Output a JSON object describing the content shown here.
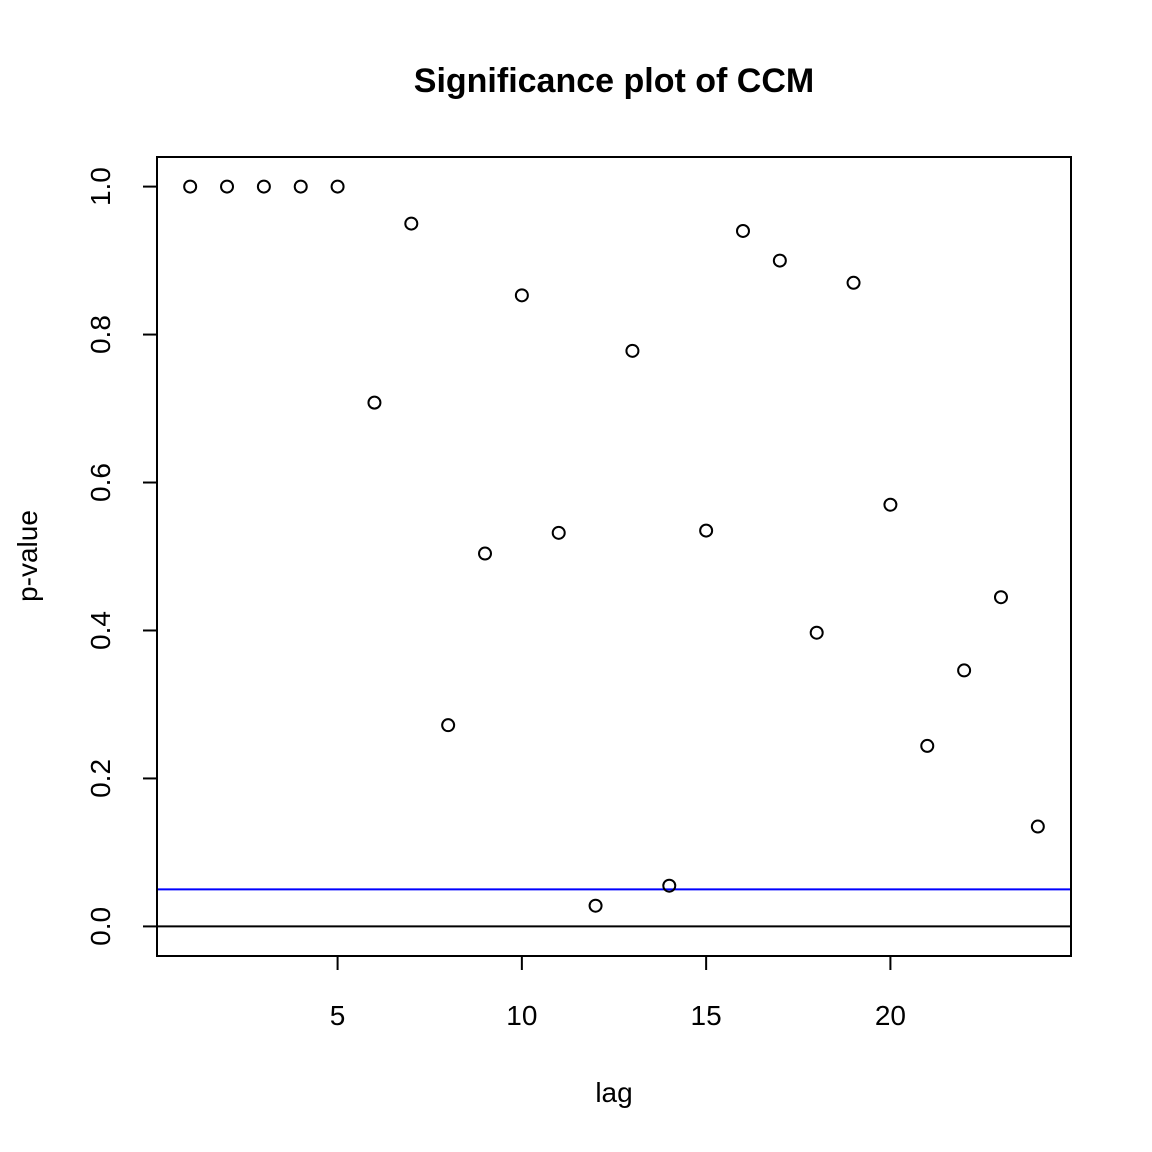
{
  "chart_data": {
    "type": "scatter",
    "title": "Significance plot of CCM",
    "xlabel": "lag",
    "ylabel": "p-value",
    "xlim": [
      0.1,
      24.9
    ],
    "ylim": [
      -0.04,
      1.04
    ],
    "x_ticks": [
      5,
      10,
      15,
      20
    ],
    "y_ticks": [
      0.0,
      0.2,
      0.4,
      0.6,
      0.8,
      1.0
    ],
    "x_tick_labels": [
      "5",
      "10",
      "15",
      "20"
    ],
    "y_tick_labels": [
      "0.0",
      "0.2",
      "0.4",
      "0.6",
      "0.8",
      "1.0"
    ],
    "grid": false,
    "marker": "open-circle",
    "point_color": "#000000",
    "x": [
      1,
      2,
      3,
      4,
      5,
      6,
      7,
      8,
      9,
      10,
      11,
      12,
      13,
      14,
      15,
      16,
      17,
      18,
      19,
      20,
      21,
      22,
      23,
      24
    ],
    "y": [
      1.0,
      1.0,
      1.0,
      1.0,
      1.0,
      0.708,
      0.95,
      0.272,
      0.504,
      0.853,
      0.532,
      0.028,
      0.778,
      0.055,
      0.535,
      0.94,
      0.9,
      0.397,
      0.87,
      0.57,
      0.244,
      0.346,
      0.445,
      0.135
    ],
    "reference_lines": [
      {
        "y": 0.05,
        "color": "#0000ff"
      },
      {
        "y": 0.0,
        "color": "#000000"
      }
    ]
  }
}
